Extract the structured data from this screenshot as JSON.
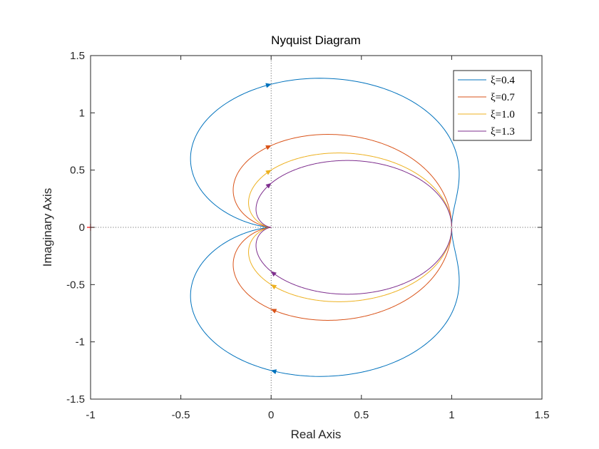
{
  "chart_data": {
    "type": "line",
    "title": "Nyquist Diagram",
    "xlabel": "Real Axis",
    "ylabel": "Imaginary Axis",
    "xlim": [
      -1,
      1.5
    ],
    "ylim": [
      -1.5,
      1.5
    ],
    "xticks": [
      -1,
      -0.5,
      0,
      0.5,
      1,
      1.5
    ],
    "yticks": [
      -1.5,
      -1,
      -0.5,
      0,
      0.5,
      1,
      1.5
    ],
    "xtick_labels": [
      "-1",
      "-0.5",
      "0",
      "0.5",
      "1",
      "1.5"
    ],
    "ytick_labels": [
      "-1.5",
      "-1",
      "-0.5",
      "0",
      "0.5",
      "1",
      "1.5"
    ],
    "critical_point": [
      -1,
      0
    ],
    "zero_lines": true,
    "grid": false,
    "legend_position": "top-right",
    "series": [
      {
        "name": "ξ=0.4",
        "zeta": 0.4,
        "color": "#0072BD"
      },
      {
        "name": "ξ=0.7",
        "zeta": 0.7,
        "color": "#D95319"
      },
      {
        "name": "ξ=1.0",
        "zeta": 1.0,
        "color": "#EDB120"
      },
      {
        "name": "ξ=1.3",
        "zeta": 1.3,
        "color": "#7E2F8E"
      }
    ]
  }
}
